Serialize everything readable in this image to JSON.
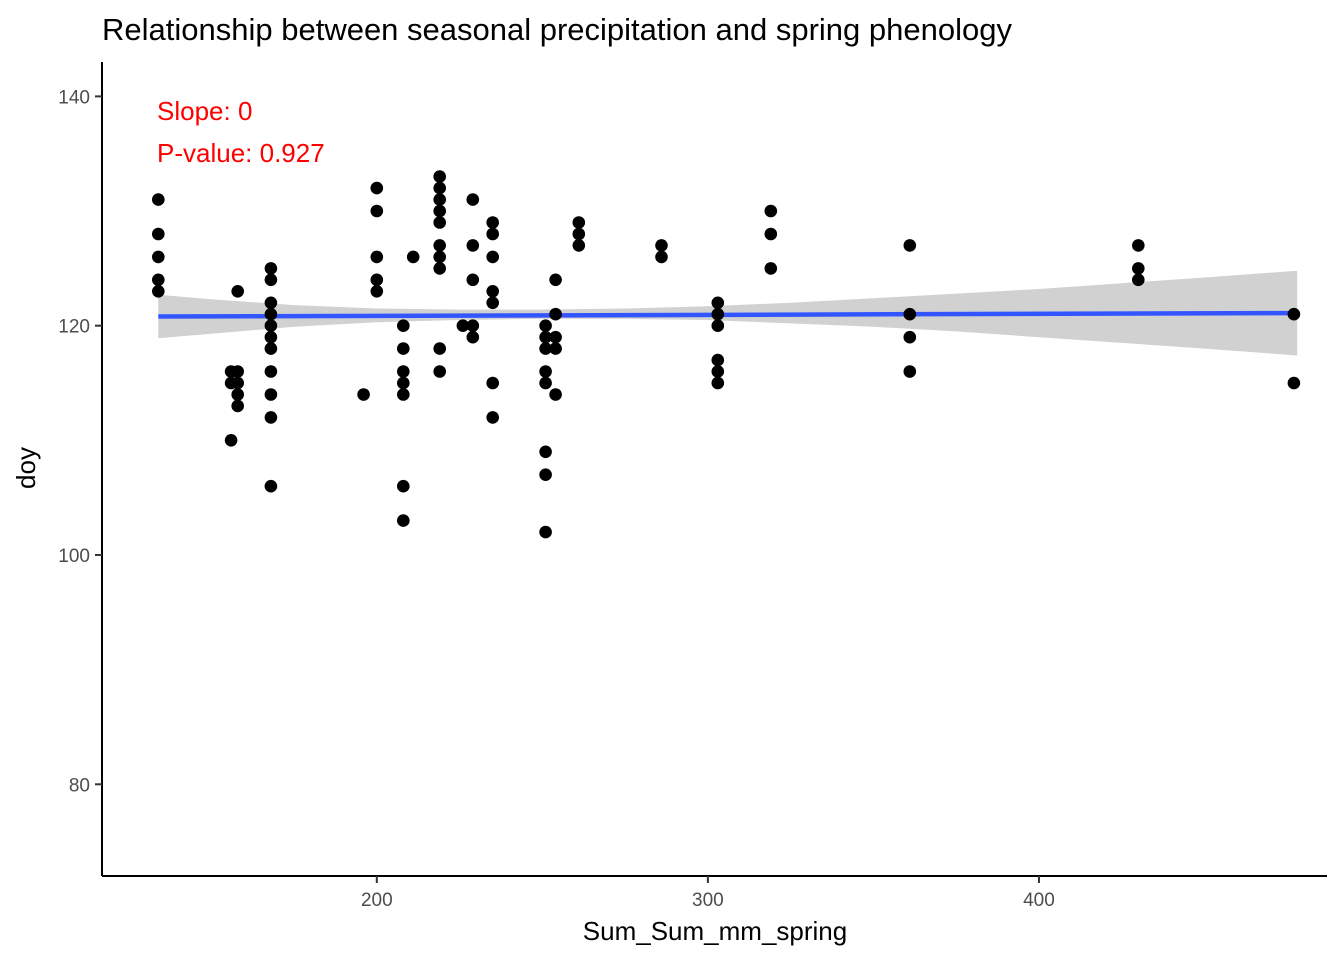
{
  "chart_data": {
    "type": "scatter",
    "title": "Relationship between seasonal precipitation and spring phenology",
    "xlabel": "Sum_Sum_mm_spring",
    "ylabel": "doy",
    "xlim": [
      117,
      487
    ],
    "ylim": [
      72,
      143
    ],
    "x_ticks": [
      200,
      300,
      400
    ],
    "y_ticks": [
      80,
      100,
      120,
      140
    ],
    "x_tick_labels": [
      "200",
      "300",
      "400"
    ],
    "y_tick_labels": [
      "80",
      "100",
      "120",
      "140"
    ],
    "grid": false,
    "annotations": [
      {
        "text": "Slope: 0",
        "color": "#ff0000"
      },
      {
        "text": "P-value: 0.927",
        "color": "#ff0000"
      }
    ],
    "point_color": "#000000",
    "trend_line": {
      "color": "#3355ff",
      "x": [
        134,
        478
      ],
      "y": [
        120.8,
        121.1
      ]
    },
    "confidence_band": {
      "color": "#cccccc",
      "x": [
        134,
        150,
        175,
        200,
        225,
        250,
        275,
        300,
        325,
        350,
        375,
        400,
        425,
        450,
        478
      ],
      "upper": [
        122.7,
        122.3,
        121.8,
        121.5,
        121.4,
        121.4,
        121.5,
        121.7,
        122.0,
        122.4,
        122.8,
        123.2,
        123.7,
        124.2,
        124.8
      ],
      "lower": [
        118.9,
        119.3,
        119.9,
        120.3,
        120.5,
        120.6,
        120.6,
        120.5,
        120.2,
        119.9,
        119.5,
        119.0,
        118.5,
        118.0,
        117.4
      ]
    },
    "points": [
      {
        "x": 134,
        "y": 131
      },
      {
        "x": 134,
        "y": 128
      },
      {
        "x": 134,
        "y": 126
      },
      {
        "x": 134,
        "y": 124
      },
      {
        "x": 134,
        "y": 123
      },
      {
        "x": 156,
        "y": 116
      },
      {
        "x": 156,
        "y": 115
      },
      {
        "x": 156,
        "y": 110
      },
      {
        "x": 158,
        "y": 123
      },
      {
        "x": 158,
        "y": 116
      },
      {
        "x": 158,
        "y": 115
      },
      {
        "x": 158,
        "y": 114
      },
      {
        "x": 158,
        "y": 113
      },
      {
        "x": 168,
        "y": 125
      },
      {
        "x": 168,
        "y": 124
      },
      {
        "x": 168,
        "y": 122
      },
      {
        "x": 168,
        "y": 121
      },
      {
        "x": 168,
        "y": 120
      },
      {
        "x": 168,
        "y": 119
      },
      {
        "x": 168,
        "y": 118
      },
      {
        "x": 168,
        "y": 116
      },
      {
        "x": 168,
        "y": 114
      },
      {
        "x": 168,
        "y": 112
      },
      {
        "x": 168,
        "y": 106
      },
      {
        "x": 196,
        "y": 114
      },
      {
        "x": 200,
        "y": 132
      },
      {
        "x": 200,
        "y": 130
      },
      {
        "x": 200,
        "y": 126
      },
      {
        "x": 200,
        "y": 124
      },
      {
        "x": 200,
        "y": 123
      },
      {
        "x": 208,
        "y": 120
      },
      {
        "x": 208,
        "y": 118
      },
      {
        "x": 208,
        "y": 116
      },
      {
        "x": 208,
        "y": 115
      },
      {
        "x": 208,
        "y": 114
      },
      {
        "x": 208,
        "y": 106
      },
      {
        "x": 208,
        "y": 103
      },
      {
        "x": 211,
        "y": 126
      },
      {
        "x": 219,
        "y": 133
      },
      {
        "x": 219,
        "y": 132
      },
      {
        "x": 219,
        "y": 131
      },
      {
        "x": 219,
        "y": 130
      },
      {
        "x": 219,
        "y": 129
      },
      {
        "x": 219,
        "y": 127
      },
      {
        "x": 219,
        "y": 126
      },
      {
        "x": 219,
        "y": 125
      },
      {
        "x": 219,
        "y": 118
      },
      {
        "x": 219,
        "y": 116
      },
      {
        "x": 226,
        "y": 120
      },
      {
        "x": 229,
        "y": 131
      },
      {
        "x": 229,
        "y": 127
      },
      {
        "x": 229,
        "y": 124
      },
      {
        "x": 229,
        "y": 120
      },
      {
        "x": 229,
        "y": 119
      },
      {
        "x": 235,
        "y": 129
      },
      {
        "x": 235,
        "y": 128
      },
      {
        "x": 235,
        "y": 126
      },
      {
        "x": 235,
        "y": 123
      },
      {
        "x": 235,
        "y": 122
      },
      {
        "x": 235,
        "y": 115
      },
      {
        "x": 235,
        "y": 112
      },
      {
        "x": 251,
        "y": 120
      },
      {
        "x": 251,
        "y": 119
      },
      {
        "x": 251,
        "y": 118
      },
      {
        "x": 251,
        "y": 116
      },
      {
        "x": 251,
        "y": 115
      },
      {
        "x": 251,
        "y": 109
      },
      {
        "x": 251,
        "y": 107
      },
      {
        "x": 251,
        "y": 102
      },
      {
        "x": 254,
        "y": 124
      },
      {
        "x": 254,
        "y": 121
      },
      {
        "x": 254,
        "y": 119
      },
      {
        "x": 254,
        "y": 118
      },
      {
        "x": 254,
        "y": 114
      },
      {
        "x": 261,
        "y": 129
      },
      {
        "x": 261,
        "y": 128
      },
      {
        "x": 261,
        "y": 127
      },
      {
        "x": 286,
        "y": 127
      },
      {
        "x": 286,
        "y": 126
      },
      {
        "x": 303,
        "y": 122
      },
      {
        "x": 303,
        "y": 121
      },
      {
        "x": 303,
        "y": 120
      },
      {
        "x": 303,
        "y": 117
      },
      {
        "x": 303,
        "y": 116
      },
      {
        "x": 303,
        "y": 115
      },
      {
        "x": 319,
        "y": 130
      },
      {
        "x": 319,
        "y": 128
      },
      {
        "x": 319,
        "y": 125
      },
      {
        "x": 361,
        "y": 127
      },
      {
        "x": 361,
        "y": 121
      },
      {
        "x": 361,
        "y": 119
      },
      {
        "x": 361,
        "y": 116
      },
      {
        "x": 430,
        "y": 127
      },
      {
        "x": 430,
        "y": 125
      },
      {
        "x": 430,
        "y": 124
      },
      {
        "x": 477,
        "y": 121
      },
      {
        "x": 477,
        "y": 115
      }
    ]
  }
}
